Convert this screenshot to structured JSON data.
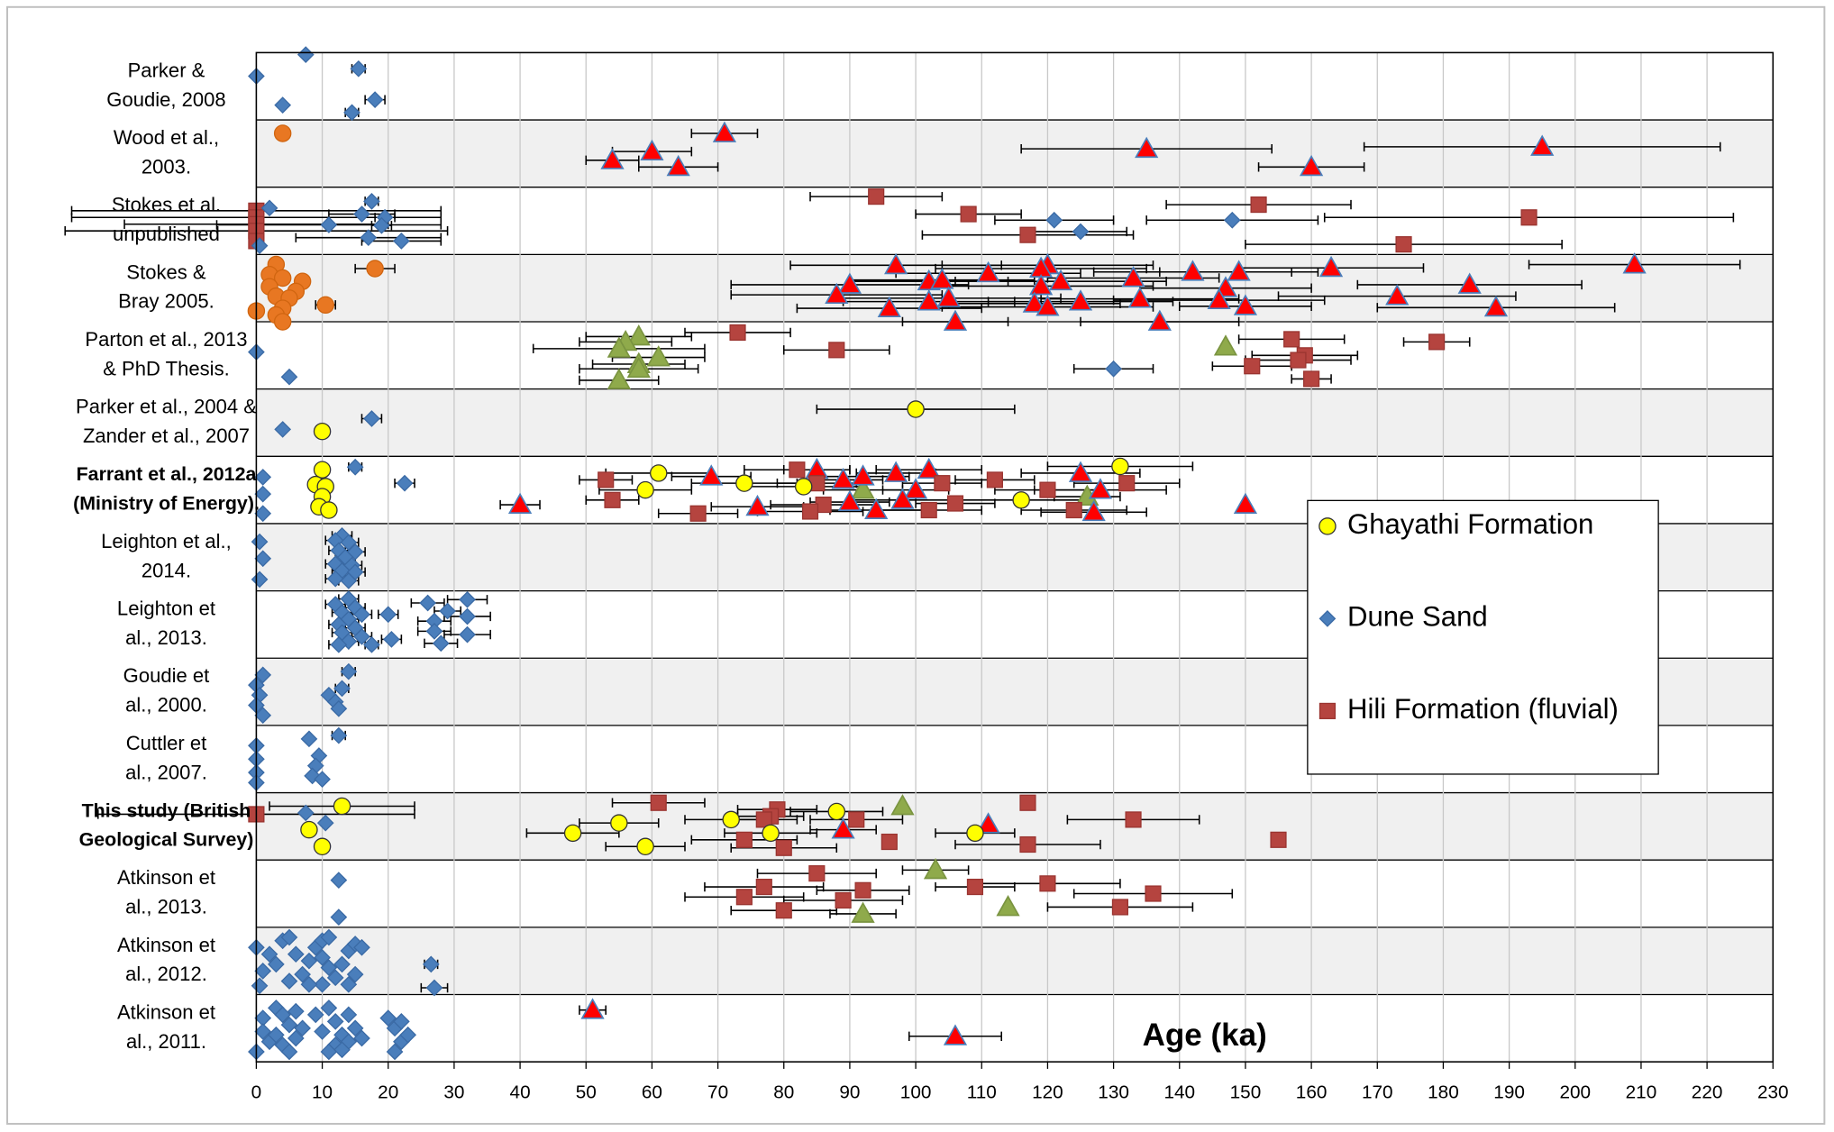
{
  "chart_data": {
    "type": "scatter",
    "annotation": "Age (ka)",
    "categories": [
      [
        "Parker &",
        "Goudie, 2008"
      ],
      [
        "Wood et al.,",
        "2003."
      ],
      [
        "Stokes et al.",
        "unpublished"
      ],
      [
        "Stokes &",
        "Bray 2005."
      ],
      [
        "Parton et al., 2013",
        "& PhD Thesis."
      ],
      [
        "Parker et al., 2004 &",
        "Zander et al., 2007"
      ],
      [
        "Farrant et al., 2012a",
        "(Ministry of Energy)."
      ],
      [
        "Leighton et al.,",
        "2014."
      ],
      [
        "Leighton et",
        "al., 2013."
      ],
      [
        "Goudie et",
        "al., 2000."
      ],
      [
        "Cuttler et",
        "al., 2007."
      ],
      [
        "This study (British",
        "Geological Survey)"
      ],
      [
        "Atkinson et",
        "al., 2013."
      ],
      [
        "Atkinson et",
        "al., 2012."
      ],
      [
        "Atkinson et",
        "al., 2011."
      ]
    ],
    "bold_categories": [
      6,
      11
    ],
    "xlim": [
      0,
      230
    ],
    "xticks": [
      0,
      10,
      20,
      30,
      40,
      50,
      60,
      70,
      80,
      90,
      100,
      110,
      120,
      130,
      140,
      150,
      160,
      170,
      180,
      190,
      200,
      210,
      220,
      230
    ],
    "ylim": [
      15,
      0
    ],
    "grid": true,
    "row_shading": true,
    "legend": "right",
    "series": [
      {
        "name": "Ghayathi Formation",
        "color": "#ffff00",
        "stroke": "#333333",
        "marker": "circle",
        "x": [
          100,
          10,
          10,
          61,
          131,
          74,
          59,
          83,
          9,
          10.5,
          10,
          9.5,
          11,
          116,
          13,
          88,
          55,
          72,
          48,
          78,
          109,
          8,
          10,
          59
        ],
        "y": [
          5.3,
          5.63,
          6.2,
          6.25,
          6.15,
          6.4,
          6.5,
          6.45,
          6.42,
          6.45,
          6.6,
          6.75,
          6.8,
          6.65,
          11.2,
          11.28,
          11.45,
          11.4,
          11.6,
          11.6,
          11.6,
          11.55,
          11.8,
          11.8
        ],
        "errors": [
          15,
          null,
          null,
          8,
          11,
          8,
          7,
          9,
          null,
          null,
          null,
          null,
          null,
          10,
          11,
          7,
          6,
          7,
          7,
          7,
          6,
          null,
          null,
          6
        ]
      },
      {
        "name": "Dune Sand",
        "color": "#4a7ebb",
        "stroke": "#3a6aa5",
        "marker": "diamond",
        "x": [
          0,
          7.5,
          15.5,
          4,
          18,
          14.5,
          2,
          17.5,
          16,
          19.5,
          11,
          19,
          17,
          22,
          0.5,
          121,
          125,
          148,
          0,
          5,
          130,
          17.5,
          4,
          15,
          22.5,
          1,
          1,
          1,
          13,
          12,
          14,
          12.5,
          15,
          13.5,
          12,
          14.5,
          13,
          15,
          12,
          14,
          0.5,
          1,
          0.5,
          14,
          12,
          15,
          13,
          16,
          14,
          12.5,
          15,
          13,
          16,
          14,
          12.5,
          20,
          20.5,
          17.5,
          26,
          32,
          27,
          32,
          27,
          32,
          28,
          29,
          1,
          0,
          0.5,
          0,
          1,
          14,
          13,
          11,
          12,
          12.5,
          0,
          0,
          0,
          0,
          12.5,
          8,
          9.5,
          9,
          8.5,
          10,
          7.5,
          10.5,
          12.5,
          12.5,
          0,
          2,
          4,
          5,
          6,
          7,
          8,
          9,
          10,
          11,
          10,
          11,
          12,
          10,
          13,
          14,
          15,
          16,
          15,
          14,
          3,
          1,
          5,
          0.5,
          8,
          26.5,
          27,
          0,
          1,
          1,
          2,
          3,
          4,
          5,
          3,
          4,
          5,
          6,
          7,
          6,
          9,
          10,
          11,
          12,
          13,
          12,
          11,
          14,
          15,
          14,
          13,
          16,
          20,
          21,
          22,
          21,
          22,
          23
        ],
        "y": [
          0.35,
          0.03,
          0.24,
          0.78,
          0.7,
          0.89,
          2.31,
          2.21,
          2.4,
          2.45,
          2.56,
          2.57,
          2.75,
          2.8,
          2.87,
          2.49,
          2.66,
          2.49,
          4.45,
          4.82,
          4.7,
          5.44,
          5.6,
          6.16,
          6.4,
          6.31,
          6.56,
          6.85,
          7.18,
          7.25,
          7.28,
          7.4,
          7.42,
          7.5,
          7.6,
          7.62,
          7.7,
          7.72,
          7.82,
          7.85,
          7.27,
          7.52,
          7.83,
          8.12,
          8.2,
          8.25,
          8.32,
          8.35,
          8.42,
          8.5,
          8.55,
          8.62,
          8.68,
          8.75,
          8.8,
          8.35,
          8.72,
          8.8,
          8.18,
          8.13,
          8.45,
          8.38,
          8.6,
          8.65,
          8.78,
          8.3,
          9.25,
          9.4,
          9.55,
          9.7,
          9.85,
          9.2,
          9.45,
          9.55,
          9.65,
          9.75,
          10.3,
          10.5,
          10.7,
          10.85,
          10.15,
          10.2,
          10.45,
          10.6,
          10.75,
          10.8,
          11.3,
          11.45,
          12.3,
          12.85,
          13.3,
          13.4,
          13.2,
          13.15,
          13.4,
          13.7,
          13.5,
          13.3,
          13.2,
          13.15,
          13.45,
          13.6,
          13.75,
          13.85,
          13.55,
          13.35,
          13.25,
          13.3,
          13.7,
          13.85,
          13.55,
          13.65,
          13.8,
          13.87,
          13.85,
          13.55,
          13.9,
          14.85,
          14.35,
          14.55,
          14.7,
          14.2,
          14.3,
          14.45,
          14.6,
          14.75,
          14.85,
          14.25,
          14.5,
          14.65,
          14.3,
          14.55,
          14.2,
          14.4,
          14.6,
          14.75,
          14.85,
          14.3,
          14.5,
          14.7,
          14.82,
          14.65,
          14.35,
          14.5,
          14.7,
          14.85,
          14.4,
          14.6
        ],
        "errors": [
          null,
          null,
          1,
          null,
          1.5,
          1,
          null,
          1,
          5,
          1.5,
          17,
          1.5,
          11,
          6,
          null,
          9,
          7,
          13,
          null,
          null,
          6,
          1.5,
          null,
          1,
          1.5,
          null,
          null,
          null,
          1.5,
          1.5,
          1.5,
          1.5,
          1.5,
          1.5,
          1.5,
          1.5,
          1.5,
          1.5,
          1.5,
          1.5,
          null,
          null,
          null,
          1.5,
          1.5,
          1.5,
          1.5,
          1.5,
          1.5,
          1.5,
          1.5,
          1.5,
          1.5,
          1.5,
          1.5,
          1.5,
          1.5,
          1,
          2.5,
          3,
          2.5,
          3.5,
          2.5,
          3.5,
          2.5,
          2,
          null,
          null,
          null,
          null,
          null,
          1,
          1,
          null,
          null,
          null,
          null,
          null,
          null,
          null,
          1,
          null,
          null,
          null,
          null,
          null,
          null,
          null,
          null,
          null,
          null,
          null,
          null,
          null,
          null,
          null,
          null,
          null,
          null,
          null,
          null,
          null,
          null,
          null,
          null,
          null,
          null,
          null,
          null,
          null,
          null,
          null,
          null,
          null,
          null,
          1,
          2,
          null,
          null,
          null,
          null,
          null,
          null,
          null,
          null,
          null,
          null,
          null,
          null,
          null,
          null,
          null,
          null,
          null,
          null,
          null,
          null,
          null,
          null,
          null,
          null,
          null,
          null,
          null,
          null,
          null,
          null,
          null
        ]
      },
      {
        "name": "Hili Formation (fluvial)",
        "color": "#b5443f",
        "stroke": "#9a3430",
        "marker": "square",
        "x": [
          0,
          0,
          0,
          0,
          0,
          94,
          108,
          152,
          117,
          193,
          174,
          73,
          88,
          179,
          157,
          159,
          158,
          151,
          160,
          53,
          54,
          67,
          82,
          85,
          86,
          84,
          104,
          106,
          102,
          112,
          120,
          124,
          132,
          0,
          61,
          79,
          78,
          77,
          91,
          96,
          74,
          80,
          117,
          117,
          133,
          155,
          85,
          77,
          74,
          92,
          89,
          80,
          109,
          120,
          136,
          131
        ],
        "y": [
          2.35,
          2.45,
          2.55,
          2.65,
          2.8,
          2.14,
          2.4,
          2.26,
          2.71,
          2.45,
          2.85,
          4.16,
          4.42,
          4.3,
          4.26,
          4.5,
          4.57,
          4.66,
          4.85,
          6.35,
          6.65,
          6.85,
          6.2,
          6.4,
          6.72,
          6.82,
          6.4,
          6.7,
          6.8,
          6.35,
          6.5,
          6.8,
          6.4,
          11.32,
          11.15,
          11.25,
          11.35,
          11.4,
          11.4,
          11.73,
          11.7,
          11.82,
          11.15,
          11.77,
          11.4,
          11.7,
          12.2,
          12.4,
          12.55,
          12.45,
          12.6,
          12.75,
          12.4,
          12.35,
          12.5,
          12.7
        ],
        "errors": [
          28,
          28,
          20,
          29,
          null,
          10,
          8,
          14,
          16,
          31,
          24,
          8,
          8,
          5,
          8,
          8,
          8,
          6,
          3,
          4,
          4,
          6,
          8,
          6,
          8,
          8,
          6,
          6,
          8,
          6,
          8,
          8,
          8,
          24,
          7,
          6,
          5,
          5,
          7,
          null,
          8,
          8,
          null,
          11,
          10,
          null,
          9,
          9,
          9,
          7,
          9,
          8,
          6,
          11,
          12,
          11
        ]
      },
      {
        "color": "#ff0000",
        "stroke": "#4a7ebb",
        "marker": "triangle",
        "x": [
          71,
          60,
          54,
          64,
          135,
          195,
          160,
          97,
          120,
          111,
          102,
          104,
          90,
          119,
          119,
          122,
          133,
          142,
          163,
          149,
          184,
          209,
          147,
          88,
          102,
          105,
          118,
          120,
          125,
          134,
          146,
          150,
          173,
          188,
          96,
          106,
          137,
          69,
          85,
          89,
          92,
          97,
          102,
          100,
          98,
          90,
          94,
          76,
          40,
          125,
          128,
          127,
          150,
          89,
          111,
          51,
          106
        ],
        "y": [
          1.2,
          1.47,
          1.6,
          1.7,
          1.43,
          1.4,
          1.7,
          3.16,
          3.16,
          3.28,
          3.4,
          3.38,
          3.45,
          3.21,
          3.47,
          3.4,
          3.35,
          3.26,
          3.2,
          3.26,
          3.45,
          3.15,
          3.5,
          3.6,
          3.7,
          3.65,
          3.73,
          3.78,
          3.7,
          3.66,
          3.68,
          3.77,
          3.62,
          3.79,
          3.8,
          4.0,
          4.0,
          6.3,
          6.2,
          6.35,
          6.3,
          6.25,
          6.2,
          6.5,
          6.65,
          6.68,
          6.8,
          6.75,
          6.72,
          6.25,
          6.5,
          6.83,
          6.72,
          11.55,
          11.47,
          14.23,
          14.62
        ],
        "errors": [
          5,
          6,
          4,
          6,
          19,
          27,
          8,
          16,
          16,
          14,
          12,
          14,
          18,
          16,
          17,
          16,
          13,
          15,
          14,
          12,
          17,
          16,
          13,
          16,
          13,
          17,
          13,
          16,
          14,
          15,
          16,
          10,
          18,
          18,
          14,
          8,
          12,
          6,
          5,
          6,
          7,
          6,
          8,
          5,
          8,
          6,
          7,
          7,
          3,
          9,
          10,
          8,
          null,
          5,
          null,
          2,
          7
        ]
      },
      {
        "color": "#8faa4b",
        "stroke": "#7a9440",
        "marker": "triangle",
        "x": [
          58,
          56,
          55,
          61,
          58,
          55,
          58,
          147,
          92,
          126,
          98,
          103,
          92,
          114
        ],
        "y": [
          4.22,
          4.3,
          4.4,
          4.53,
          4.63,
          4.87,
          4.7,
          4.37,
          6.5,
          6.6,
          11.2,
          12.15,
          12.8,
          12.7
        ],
        "errors": [
          8,
          7,
          13,
          7,
          7,
          6,
          9,
          null,
          6,
          5,
          null,
          5,
          5,
          null
        ]
      },
      {
        "color": "#e87722",
        "stroke": "#d06510",
        "marker": "circle",
        "x": [
          4,
          18,
          3,
          2,
          4,
          7,
          2,
          6,
          3,
          5,
          10.5,
          4,
          0,
          3,
          4
        ],
        "y": [
          1.2,
          3.21,
          3.15,
          3.3,
          3.35,
          3.4,
          3.48,
          3.55,
          3.62,
          3.65,
          3.75,
          3.8,
          3.84,
          3.9,
          4.0
        ],
        "errors": [
          null,
          3,
          null,
          null,
          null,
          null,
          null,
          null,
          null,
          null,
          1.5,
          null,
          null,
          null,
          null
        ]
      }
    ]
  }
}
